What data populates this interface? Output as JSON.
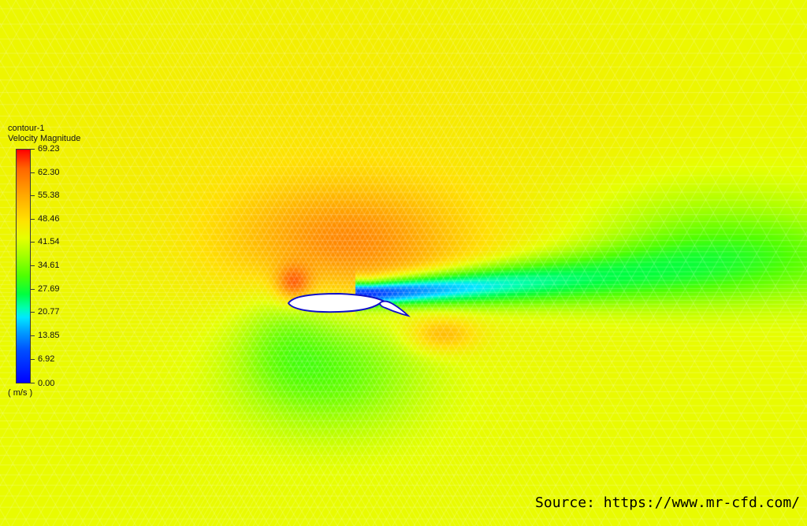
{
  "contour": {
    "name": "contour-1",
    "quantity": "Velocity Magnitude",
    "units": "( m/s )",
    "colors": {
      "max": "#ff0000",
      "high": "#ffa000",
      "mid_high": "#ffe000",
      "mid": "#80ff00",
      "low_mid": "#00ffb0",
      "low": "#00a0ff",
      "min": "#0000ff"
    },
    "ticks": [
      "69.23",
      "62.30",
      "55.38",
      "48.46",
      "41.54",
      "34.61",
      "27.69",
      "20.77",
      "13.85",
      "6.92",
      "0.00"
    ]
  },
  "source": {
    "label": "Source: https://www.mr-cfd.com/"
  }
}
